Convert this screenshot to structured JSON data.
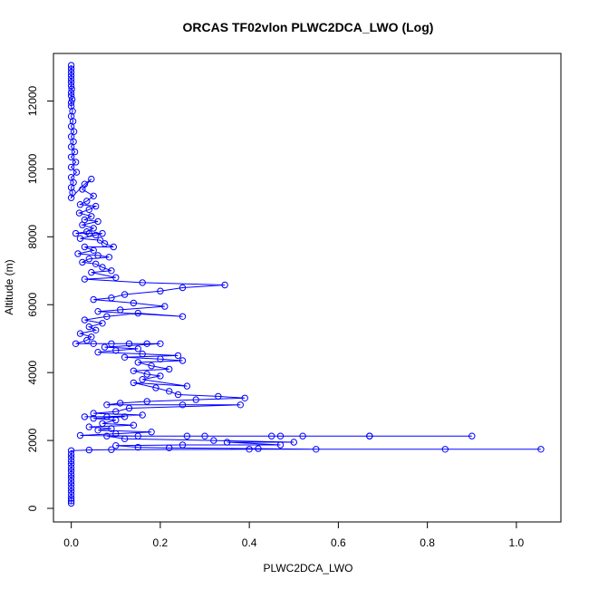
{
  "chart_data": {
    "type": "scatter",
    "title": "ORCAS TF02vlon PLWC2DCA_LWO (Log)",
    "xlabel": "PLWC2DCA_LWO",
    "ylabel": "Altitude (m)",
    "xlim": [
      -0.04,
      1.1
    ],
    "ylim": [
      -400,
      13400
    ],
    "xticks": [
      0.0,
      0.2,
      0.4,
      0.6,
      0.8,
      1.0
    ],
    "xtick_labels": [
      "0.0",
      "0.2",
      "0.4",
      "0.6",
      "0.8",
      "1.0"
    ],
    "yticks": [
      0,
      2000,
      4000,
      6000,
      8000,
      10000,
      12000
    ],
    "ytick_labels": [
      "0",
      "2000",
      "4000",
      "6000",
      "8000",
      "10000",
      "12000"
    ],
    "grid": false,
    "marker": "open-circle",
    "connected": true,
    "color": "#0000ff",
    "series": [
      {
        "values": [
          [
            0.0,
            13050
          ],
          [
            0.0,
            12950
          ],
          [
            0.0,
            12850
          ],
          [
            0.0,
            12750
          ],
          [
            0.0,
            12650
          ],
          [
            0.0,
            12550
          ],
          [
            0.0,
            12450
          ],
          [
            0.001,
            12350
          ],
          [
            0.0,
            12250
          ],
          [
            0.0,
            12150
          ],
          [
            0.002,
            12050
          ],
          [
            0.0,
            11950
          ],
          [
            0.0,
            11850
          ],
          [
            0.003,
            11700
          ],
          [
            0.0,
            11550
          ],
          [
            0.004,
            11400
          ],
          [
            0.0,
            11250
          ],
          [
            0.006,
            11100
          ],
          [
            0.0,
            10950
          ],
          [
            0.005,
            10800
          ],
          [
            0.0,
            10650
          ],
          [
            0.008,
            10500
          ],
          [
            0.0,
            10350
          ],
          [
            0.01,
            10200
          ],
          [
            0.0,
            10050
          ],
          [
            0.012,
            9900
          ],
          [
            0.0,
            9750
          ],
          [
            0.005,
            9600
          ],
          [
            0.0,
            9450
          ],
          [
            0.003,
            9300
          ],
          [
            0.0,
            9150
          ],
          [
            0.03,
            9550
          ],
          [
            0.045,
            9700
          ],
          [
            0.025,
            9400
          ],
          [
            0.05,
            9200
          ],
          [
            0.035,
            9050
          ],
          [
            0.02,
            8950
          ],
          [
            0.055,
            8900
          ],
          [
            0.04,
            8800
          ],
          [
            0.018,
            8700
          ],
          [
            0.045,
            8600
          ],
          [
            0.03,
            8500
          ],
          [
            0.06,
            8450
          ],
          [
            0.025,
            8350
          ],
          [
            0.05,
            8250
          ],
          [
            0.035,
            8150
          ],
          [
            0.01,
            8100
          ],
          [
            0.04,
            8100
          ],
          [
            0.07,
            8100
          ],
          [
            0.055,
            8050
          ],
          [
            0.02,
            7950
          ],
          [
            0.065,
            7900
          ],
          [
            0.075,
            7800
          ],
          [
            0.095,
            7700
          ],
          [
            0.03,
            7700
          ],
          [
            0.05,
            7600
          ],
          [
            0.015,
            7500
          ],
          [
            0.06,
            7450
          ],
          [
            0.085,
            7400
          ],
          [
            0.04,
            7350
          ],
          [
            0.025,
            7250
          ],
          [
            0.055,
            7200
          ],
          [
            0.07,
            7100
          ],
          [
            0.09,
            7000
          ],
          [
            0.045,
            6950
          ],
          [
            0.1,
            6800
          ],
          [
            0.03,
            6750
          ],
          [
            0.16,
            6650
          ],
          [
            0.345,
            6580
          ],
          [
            0.25,
            6500
          ],
          [
            0.2,
            6400
          ],
          [
            0.12,
            6300
          ],
          [
            0.09,
            6200
          ],
          [
            0.05,
            6150
          ],
          [
            0.14,
            6050
          ],
          [
            0.21,
            5950
          ],
          [
            0.11,
            5850
          ],
          [
            0.06,
            5800
          ],
          [
            0.25,
            5650
          ],
          [
            0.15,
            5750
          ],
          [
            0.08,
            5650
          ],
          [
            0.03,
            5550
          ],
          [
            0.07,
            5450
          ],
          [
            0.04,
            5350
          ],
          [
            0.055,
            5250
          ],
          [
            0.02,
            5150
          ],
          [
            0.045,
            5050
          ],
          [
            0.035,
            4950
          ],
          [
            0.01,
            4850
          ],
          [
            0.05,
            4850
          ],
          [
            0.09,
            4850
          ],
          [
            0.13,
            4850
          ],
          [
            0.17,
            4850
          ],
          [
            0.2,
            4850
          ],
          [
            0.075,
            4750
          ],
          [
            0.15,
            4700
          ],
          [
            0.1,
            4650
          ],
          [
            0.06,
            4600
          ],
          [
            0.16,
            4550
          ],
          [
            0.24,
            4500
          ],
          [
            0.12,
            4450
          ],
          [
            0.2,
            4400
          ],
          [
            0.25,
            4350
          ],
          [
            0.15,
            4300
          ],
          [
            0.18,
            4200
          ],
          [
            0.22,
            4100
          ],
          [
            0.14,
            4050
          ],
          [
            0.17,
            3950
          ],
          [
            0.2,
            3900
          ],
          [
            0.16,
            3800
          ],
          [
            0.26,
            3600
          ],
          [
            0.14,
            3700
          ],
          [
            0.19,
            3550
          ],
          [
            0.22,
            3450
          ],
          [
            0.24,
            3350
          ],
          [
            0.33,
            3300
          ],
          [
            0.39,
            3250
          ],
          [
            0.28,
            3200
          ],
          [
            0.17,
            3150
          ],
          [
            0.11,
            3100
          ],
          [
            0.08,
            3050
          ],
          [
            0.25,
            3050
          ],
          [
            0.38,
            3050
          ],
          [
            0.13,
            2950
          ],
          [
            0.1,
            2850
          ],
          [
            0.05,
            2800
          ],
          [
            0.16,
            2750
          ],
          [
            0.08,
            2700
          ],
          [
            0.03,
            2700
          ],
          [
            0.12,
            2700
          ],
          [
            0.05,
            2650
          ],
          [
            0.1,
            2600
          ],
          [
            0.07,
            2500
          ],
          [
            0.14,
            2450
          ],
          [
            0.04,
            2400
          ],
          [
            0.09,
            2350
          ],
          [
            0.06,
            2300
          ],
          [
            0.18,
            2250
          ],
          [
            0.1,
            2200
          ],
          [
            0.02,
            2150
          ],
          [
            0.15,
            2130
          ],
          [
            0.3,
            2130
          ],
          [
            0.45,
            2130
          ],
          [
            0.52,
            2130
          ],
          [
            0.67,
            2130
          ],
          [
            0.9,
            2130
          ],
          [
            0.67,
            2130
          ],
          [
            0.47,
            2130
          ],
          [
            0.26,
            2130
          ],
          [
            0.08,
            2130
          ],
          [
            0.12,
            2050
          ],
          [
            0.32,
            2000
          ],
          [
            0.5,
            1950
          ],
          [
            0.35,
            1950
          ],
          [
            0.47,
            1870
          ],
          [
            0.25,
            1870
          ],
          [
            0.1,
            1850
          ],
          [
            0.15,
            1800
          ],
          [
            0.22,
            1780
          ],
          [
            0.42,
            1760
          ],
          [
            0.55,
            1740
          ],
          [
            0.84,
            1740
          ],
          [
            1.055,
            1740
          ],
          [
            0.4,
            1740
          ],
          [
            0.09,
            1730
          ],
          [
            0.04,
            1720
          ],
          [
            0.0,
            1700
          ],
          [
            0.0,
            1600
          ],
          [
            0.0,
            1500
          ],
          [
            0.0,
            1400
          ],
          [
            0.0,
            1300
          ],
          [
            0.0,
            1200
          ],
          [
            0.0,
            1100
          ],
          [
            0.0,
            1000
          ],
          [
            0.0,
            900
          ],
          [
            0.0,
            800
          ],
          [
            0.0,
            700
          ],
          [
            0.0,
            600
          ],
          [
            0.0,
            500
          ],
          [
            0.0,
            400
          ],
          [
            0.0,
            300
          ],
          [
            0.0,
            220
          ],
          [
            0.0,
            150
          ]
        ]
      }
    ]
  }
}
